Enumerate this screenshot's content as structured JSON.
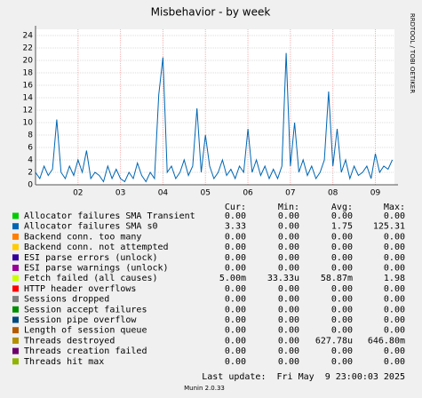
{
  "chart_data": {
    "type": "line",
    "title": "Misbehavior - by week",
    "side_text": "RRDTOOL / TOBI OETIKER",
    "xlim": [
      1,
      9.45
    ],
    "ylim": [
      0,
      25
    ],
    "grid": true,
    "xticks": [
      {
        "value": 2,
        "label": "02"
      },
      {
        "value": 3,
        "label": "03"
      },
      {
        "value": 4,
        "label": "04"
      },
      {
        "value": 5,
        "label": "05"
      },
      {
        "value": 6,
        "label": "06"
      },
      {
        "value": 7,
        "label": "07"
      },
      {
        "value": 8,
        "label": "08"
      },
      {
        "value": 9,
        "label": "09"
      }
    ],
    "yticks": [
      0,
      2,
      4,
      6,
      8,
      10,
      12,
      14,
      16,
      18,
      20,
      22,
      24
    ],
    "x": [
      1.0,
      1.1,
      1.2,
      1.3,
      1.4,
      1.5,
      1.6,
      1.7,
      1.8,
      1.9,
      2.0,
      2.1,
      2.2,
      2.3,
      2.4,
      2.5,
      2.6,
      2.7,
      2.8,
      2.9,
      3.0,
      3.1,
      3.2,
      3.3,
      3.4,
      3.5,
      3.6,
      3.7,
      3.8,
      3.9,
      4.0,
      4.1,
      4.2,
      4.3,
      4.4,
      4.5,
      4.6,
      4.7,
      4.8,
      4.9,
      5.0,
      5.1,
      5.2,
      5.3,
      5.4,
      5.5,
      5.6,
      5.7,
      5.8,
      5.9,
      6.0,
      6.1,
      6.2,
      6.3,
      6.4,
      6.5,
      6.6,
      6.7,
      6.8,
      6.9,
      7.0,
      7.1,
      7.2,
      7.3,
      7.4,
      7.5,
      7.6,
      7.7,
      7.8,
      7.9,
      8.0,
      8.1,
      8.2,
      8.3,
      8.4,
      8.5,
      8.6,
      8.7,
      8.8,
      8.9,
      9.0,
      9.1,
      9.2,
      9.3,
      9.4
    ],
    "stat_headers": [
      "Cur:",
      "Min:",
      "Avg:",
      "Max:"
    ],
    "series": [
      {
        "name": "Allocator failures SMA Transient",
        "color": "#00cc00",
        "stats": [
          "0.00",
          "0.00",
          "0.00",
          "0.00"
        ]
      },
      {
        "name": "Allocator failures SMA s0",
        "color": "#0066b3",
        "stats": [
          "3.33",
          "0.00",
          "1.75",
          "125.31"
        ],
        "values": [
          2,
          1,
          3,
          1.5,
          2.5,
          10.5,
          2,
          1,
          3,
          1.5,
          4,
          2,
          5.5,
          1,
          2,
          1.5,
          0.5,
          3,
          1,
          2.5,
          1,
          0.5,
          2,
          1,
          3.5,
          1.5,
          0.5,
          2,
          1,
          14.5,
          20.5,
          2,
          3,
          1,
          2,
          4,
          1.5,
          3,
          12.3,
          2,
          8,
          3,
          1,
          2,
          4,
          1.5,
          2.5,
          1,
          3,
          2,
          9,
          2,
          4,
          1.5,
          3,
          1,
          2.5,
          1,
          3,
          21.2,
          3,
          10,
          2,
          4,
          1.5,
          3,
          1,
          2,
          4,
          15,
          3,
          9,
          2,
          4,
          1,
          3,
          1.5,
          2,
          3,
          1,
          5,
          2,
          3,
          2.5,
          4
        ]
      },
      {
        "name": "Backend conn. too many",
        "color": "#ff8000",
        "stats": [
          "0.00",
          "0.00",
          "0.00",
          "0.00"
        ]
      },
      {
        "name": "Backend conn. not attempted",
        "color": "#ffcc00",
        "stats": [
          "0.00",
          "0.00",
          "0.00",
          "0.00"
        ]
      },
      {
        "name": "ESI parse errors (unlock)",
        "color": "#330099",
        "stats": [
          "0.00",
          "0.00",
          "0.00",
          "0.00"
        ]
      },
      {
        "name": "ESI parse warnings (unlock)",
        "color": "#990099",
        "stats": [
          "0.00",
          "0.00",
          "0.00",
          "0.00"
        ]
      },
      {
        "name": "Fetch failed (all causes)",
        "color": "#ccff00",
        "stats": [
          "5.00m",
          "33.33u",
          "58.87m",
          "1.98"
        ]
      },
      {
        "name": "HTTP header overflows",
        "color": "#ff0000",
        "stats": [
          "0.00",
          "0.00",
          "0.00",
          "0.00"
        ]
      },
      {
        "name": "Sessions dropped",
        "color": "#808080",
        "stats": [
          "0.00",
          "0.00",
          "0.00",
          "0.00"
        ]
      },
      {
        "name": "Session accept failures",
        "color": "#008f00",
        "stats": [
          "0.00",
          "0.00",
          "0.00",
          "0.00"
        ]
      },
      {
        "name": "Session pipe overflow",
        "color": "#00487d",
        "stats": [
          "0.00",
          "0.00",
          "0.00",
          "0.00"
        ]
      },
      {
        "name": "Length of session queue",
        "color": "#b35a00",
        "stats": [
          "0.00",
          "0.00",
          "0.00",
          "0.00"
        ]
      },
      {
        "name": "Threads destroyed",
        "color": "#b38f00",
        "stats": [
          "0.00",
          "0.00",
          "627.78u",
          "646.80m"
        ]
      },
      {
        "name": "Threads creation failed",
        "color": "#6b006b",
        "stats": [
          "0.00",
          "0.00",
          "0.00",
          "0.00"
        ]
      },
      {
        "name": "Threads hit max",
        "color": "#8fb300",
        "stats": [
          "0.00",
          "0.00",
          "0.00",
          "0.00"
        ]
      }
    ],
    "last_update": "Last update:  Fri May  9 23:00:03 2025",
    "footer": "Munin 2.0.33"
  }
}
